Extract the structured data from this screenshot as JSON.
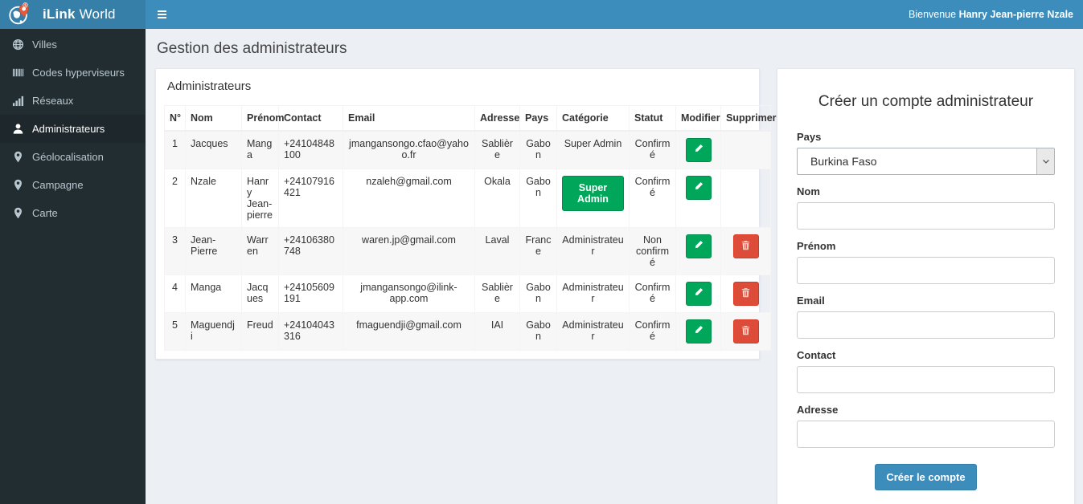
{
  "header": {
    "brand_bold": "iLink",
    "brand_light": "World",
    "welcome_prefix": "Bienvenue",
    "welcome_name": "Hanry Jean-pierre Nzale"
  },
  "sidebar": {
    "items": [
      {
        "label": "Villes",
        "icon": "globe",
        "active": false
      },
      {
        "label": "Codes hyperviseurs",
        "icon": "barcode",
        "active": false
      },
      {
        "label": "Réseaux",
        "icon": "bar-chart",
        "active": false
      },
      {
        "label": "Administrateurs",
        "icon": "user",
        "active": true
      },
      {
        "label": "Géolocalisation",
        "icon": "map-marker",
        "active": false
      },
      {
        "label": "Campagne",
        "icon": "map-marker",
        "active": false
      },
      {
        "label": "Carte",
        "icon": "map-marker",
        "active": false
      }
    ]
  },
  "page": {
    "title": "Gestion des administrateurs"
  },
  "table_panel": {
    "title": "Administrateurs",
    "columns": [
      "N°",
      "Nom",
      "Prénom",
      "Contact",
      "Email",
      "Adresse",
      "Pays",
      "Catégorie",
      "Statut",
      "Modifier",
      "Supprimer"
    ],
    "rows": [
      {
        "num": "1",
        "nom": "Jacques",
        "prenom": "Manga",
        "contact": "+24104848100",
        "email": "jmangansongo.cfao@yahoo.fr",
        "adresse": "Sablière",
        "pays": "Gabon",
        "categorie": "Super Admin",
        "categorie_badge": false,
        "statut": "Confirmé",
        "can_delete": false
      },
      {
        "num": "2",
        "nom": "Nzale",
        "prenom": "Hanry Jean-pierre",
        "contact": "+24107916421",
        "email": "nzaleh@gmail.com",
        "adresse": "Okala",
        "pays": "Gabon",
        "categorie": "Super Admin",
        "categorie_badge": true,
        "statut": "Confirmé",
        "can_delete": false
      },
      {
        "num": "3",
        "nom": "Jean-Pierre",
        "prenom": "Warren",
        "contact": "+24106380748",
        "email": "waren.jp@gmail.com",
        "adresse": "Laval",
        "pays": "France",
        "categorie": "Administrateur",
        "categorie_badge": false,
        "statut": "Non confirmé",
        "can_delete": true
      },
      {
        "num": "4",
        "nom": "Manga",
        "prenom": "Jacques",
        "contact": "+24105609191",
        "email": "jmangansongo@ilink-app.com",
        "adresse": "Sablière",
        "pays": "Gabon",
        "categorie": "Administrateur",
        "categorie_badge": false,
        "statut": "Confirmé",
        "can_delete": true
      },
      {
        "num": "5",
        "nom": "Maguendji",
        "prenom": "Freud",
        "contact": "+24104043316",
        "email": "fmaguendji@gmail.com",
        "adresse": "IAI",
        "pays": "Gabon",
        "categorie": "Administrateur",
        "categorie_badge": false,
        "statut": "Confirmé",
        "can_delete": true
      }
    ],
    "edit_button_label": "Modifier",
    "delete_button_label": "Supprimer"
  },
  "form_panel": {
    "title": "Créer un compte administrateur",
    "fields": [
      {
        "key": "pays",
        "label": "Pays",
        "type": "select",
        "value": "Burkina Faso",
        "placeholder": ""
      },
      {
        "key": "nom",
        "label": "Nom",
        "type": "text",
        "value": "",
        "placeholder": ""
      },
      {
        "key": "prenom",
        "label": "Prénom",
        "type": "text",
        "value": "",
        "placeholder": ""
      },
      {
        "key": "email",
        "label": "Email",
        "type": "text",
        "value": "",
        "placeholder": ""
      },
      {
        "key": "contact",
        "label": "Contact",
        "type": "text",
        "value": "",
        "placeholder": ""
      },
      {
        "key": "adresse",
        "label": "Adresse",
        "type": "text",
        "value": "",
        "placeholder": ""
      }
    ],
    "submit_label": "Créer le compte"
  },
  "colors": {
    "navbar": "#3c8dbc",
    "logo_bg": "#367fa9",
    "sidebar_bg": "#222d32",
    "sidebar_active_bg": "#1e282c",
    "success": "#00a65a",
    "danger": "#dd4b39",
    "content_bg": "#ecf0f5",
    "pin_orange": "#e2593b"
  }
}
